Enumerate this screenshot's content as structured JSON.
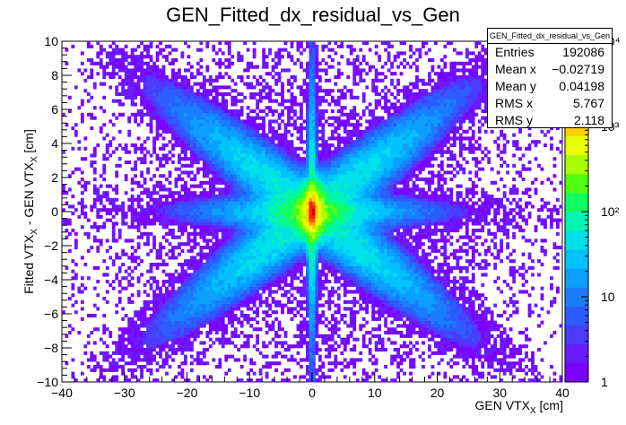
{
  "chart_data": {
    "type": "heatmap",
    "title": "GEN_Fitted_dx_residual_vs_Gen",
    "xlabel": "GEN VTX_X [cm]",
    "ylabel": "Fitted VTX_X - GEN VTX_X [cm]",
    "xlim": [
      -40,
      40
    ],
    "ylim": [
      -10,
      10
    ],
    "x_ticks": [
      "−40",
      "−30",
      "−20",
      "−10",
      "0",
      "10",
      "20",
      "30",
      "40"
    ],
    "y_ticks": [
      "−10",
      "−8",
      "−6",
      "−4",
      "−2",
      "0",
      "2",
      "4",
      "6",
      "8",
      "10"
    ],
    "z_scale": "log",
    "zlim": [
      1,
      10000
    ],
    "z_ticks": [
      "1",
      "10",
      "10²",
      "10³",
      "10⁴"
    ],
    "features": {
      "peak": [
        0,
        0
      ],
      "vertical_band_x": 0,
      "horizontal_band_y": 0,
      "diagonal_arms": true
    }
  },
  "stats": {
    "name": "GEN_Fitted_dx_residual_vs_Gen",
    "rows": [
      {
        "label": "Entries",
        "value": "192086"
      },
      {
        "label": "Mean x",
        "value": "−0.02719"
      },
      {
        "label": "Mean y",
        "value": "0.04198"
      },
      {
        "label": "RMS x",
        "value": "5.767"
      },
      {
        "label": "RMS y",
        "value": "2.118"
      }
    ]
  },
  "palette": {
    "colors": [
      "#7c00ff",
      "#6a1bff",
      "#4b3bff",
      "#2c5cff",
      "#1a7dff",
      "#0b9fff",
      "#00c2ff",
      "#00e0e8",
      "#00f5b0",
      "#10ff60",
      "#50ff10",
      "#a8ff00",
      "#e8ff00",
      "#ffd000",
      "#ff9000",
      "#ff5000",
      "#ff1a00",
      "#e00000"
    ]
  }
}
